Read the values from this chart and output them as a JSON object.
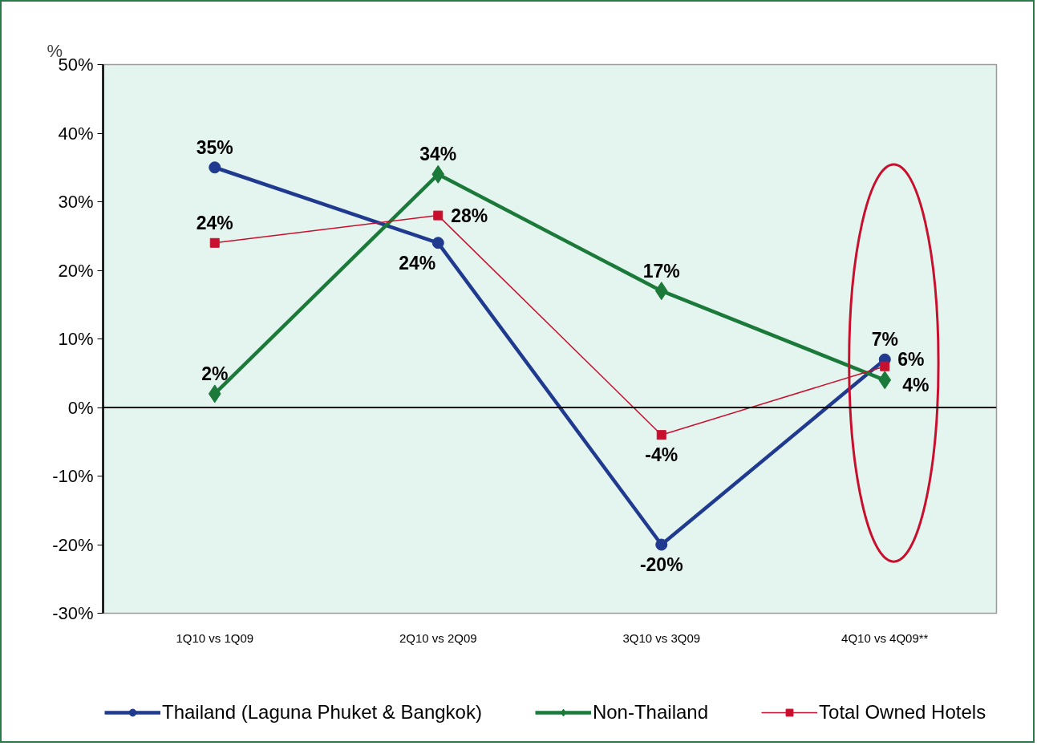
{
  "chart_data": {
    "type": "line",
    "ylabel": "%",
    "categories": [
      "1Q10 vs 1Q09",
      "2Q10 vs 2Q09",
      "3Q10 vs 3Q09",
      "4Q10 vs 4Q09**"
    ],
    "ylim": [
      -30,
      50
    ],
    "yticks": [
      {
        "value": -30,
        "label": "-30%"
      },
      {
        "value": -20,
        "label": "-20%"
      },
      {
        "value": -10,
        "label": "-10%"
      },
      {
        "value": 0,
        "label": "0%"
      },
      {
        "value": 10,
        "label": "10%"
      },
      {
        "value": 20,
        "label": "20%"
      },
      {
        "value": 30,
        "label": "30%"
      },
      {
        "value": 40,
        "label": "40%"
      },
      {
        "value": 50,
        "label": "50%"
      }
    ],
    "legend": "bottom",
    "ref_lines": [
      {
        "axis": "y",
        "value": 0,
        "color": "#000000"
      }
    ],
    "series": [
      {
        "name": "Thailand (Laguna Phuket & Bangkok)",
        "color": "#1f3a8f",
        "marker": "circle",
        "values": [
          35,
          24,
          -20,
          7
        ],
        "value_labels": [
          "35%",
          "24%",
          "-20%",
          "7%"
        ]
      },
      {
        "name": "Non-Thailand",
        "color": "#1b7a3a",
        "marker": "diamond",
        "values": [
          2,
          34,
          17,
          4
        ],
        "value_labels": [
          "2%",
          "34%",
          "17%",
          "4%"
        ]
      },
      {
        "name": "Total Owned Hotels",
        "color": "#c8102e",
        "marker": "square",
        "values": [
          24,
          28,
          -4,
          6
        ],
        "value_labels": [
          "24%",
          "28%",
          "-4%",
          "6%"
        ]
      }
    ]
  }
}
